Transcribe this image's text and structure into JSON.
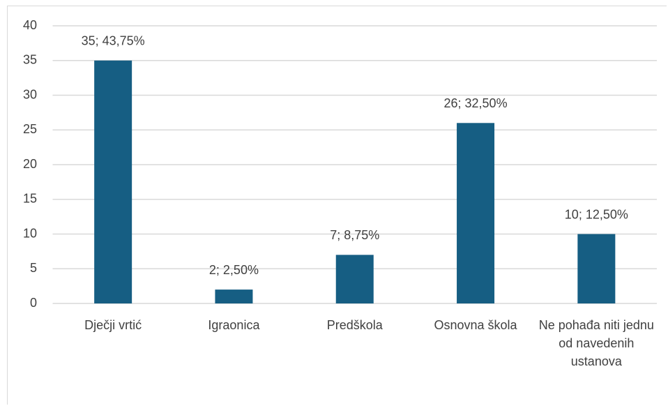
{
  "chart_data": {
    "type": "bar",
    "categories": [
      "Dječji vrtić",
      "Igraonica",
      "Predškola",
      "Osnovna škola",
      "Ne pohađa niti jednu od navedenih ustanova"
    ],
    "values": [
      35,
      2,
      7,
      26,
      10
    ],
    "value_labels": [
      "35; 43,75%",
      "2; 2,50%",
      "7; 8,75%",
      "26; 32,50%",
      "10; 12,50%"
    ],
    "color": "#165e83",
    "ylim": [
      0,
      40
    ],
    "yticks": [
      0,
      5,
      10,
      15,
      20,
      25,
      30,
      35,
      40
    ],
    "grid": true
  }
}
